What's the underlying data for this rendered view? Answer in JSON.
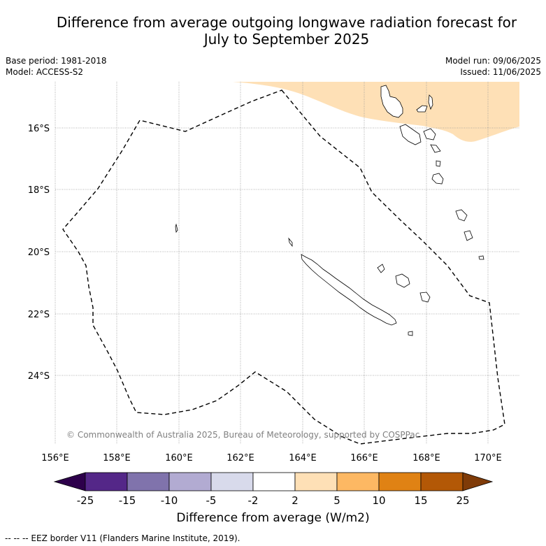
{
  "title_line1": "Difference from average outgoing longwave radiation forecast for",
  "title_line2": "July to September 2025",
  "base_period": "Base period: 1981-2018",
  "model": "Model: ACCESS-S2",
  "model_run": "Model run: 09/06/2025",
  "issued": "Issued: 11/06/2025",
  "copyright": "© Commonwealth of Australia 2025, Bureau of Meteorology, supported by COSPPac",
  "lat_labels": [
    "16°S",
    "18°S",
    "20°S",
    "22°S",
    "24°S"
  ],
  "lon_labels": [
    "156°E",
    "158°E",
    "160°E",
    "162°E",
    "164°E",
    "166°E",
    "168°E",
    "170°E"
  ],
  "colorbar": {
    "label": "Difference from average (W/m2)",
    "ticks": [
      "-25",
      "-15",
      "-10",
      "-5",
      "-2",
      "2",
      "5",
      "10",
      "15",
      "25"
    ],
    "colors": [
      "#2d004b",
      "#542788",
      "#8073ac",
      "#b2abd2",
      "#d8daeb",
      "#ffffff",
      "#fee0b6",
      "#fdb863",
      "#e08214",
      "#b35806",
      "#7f3b08"
    ]
  },
  "footer": "-- -- -- EEZ border V11 (Flanders Marine Institute, 2019)."
}
